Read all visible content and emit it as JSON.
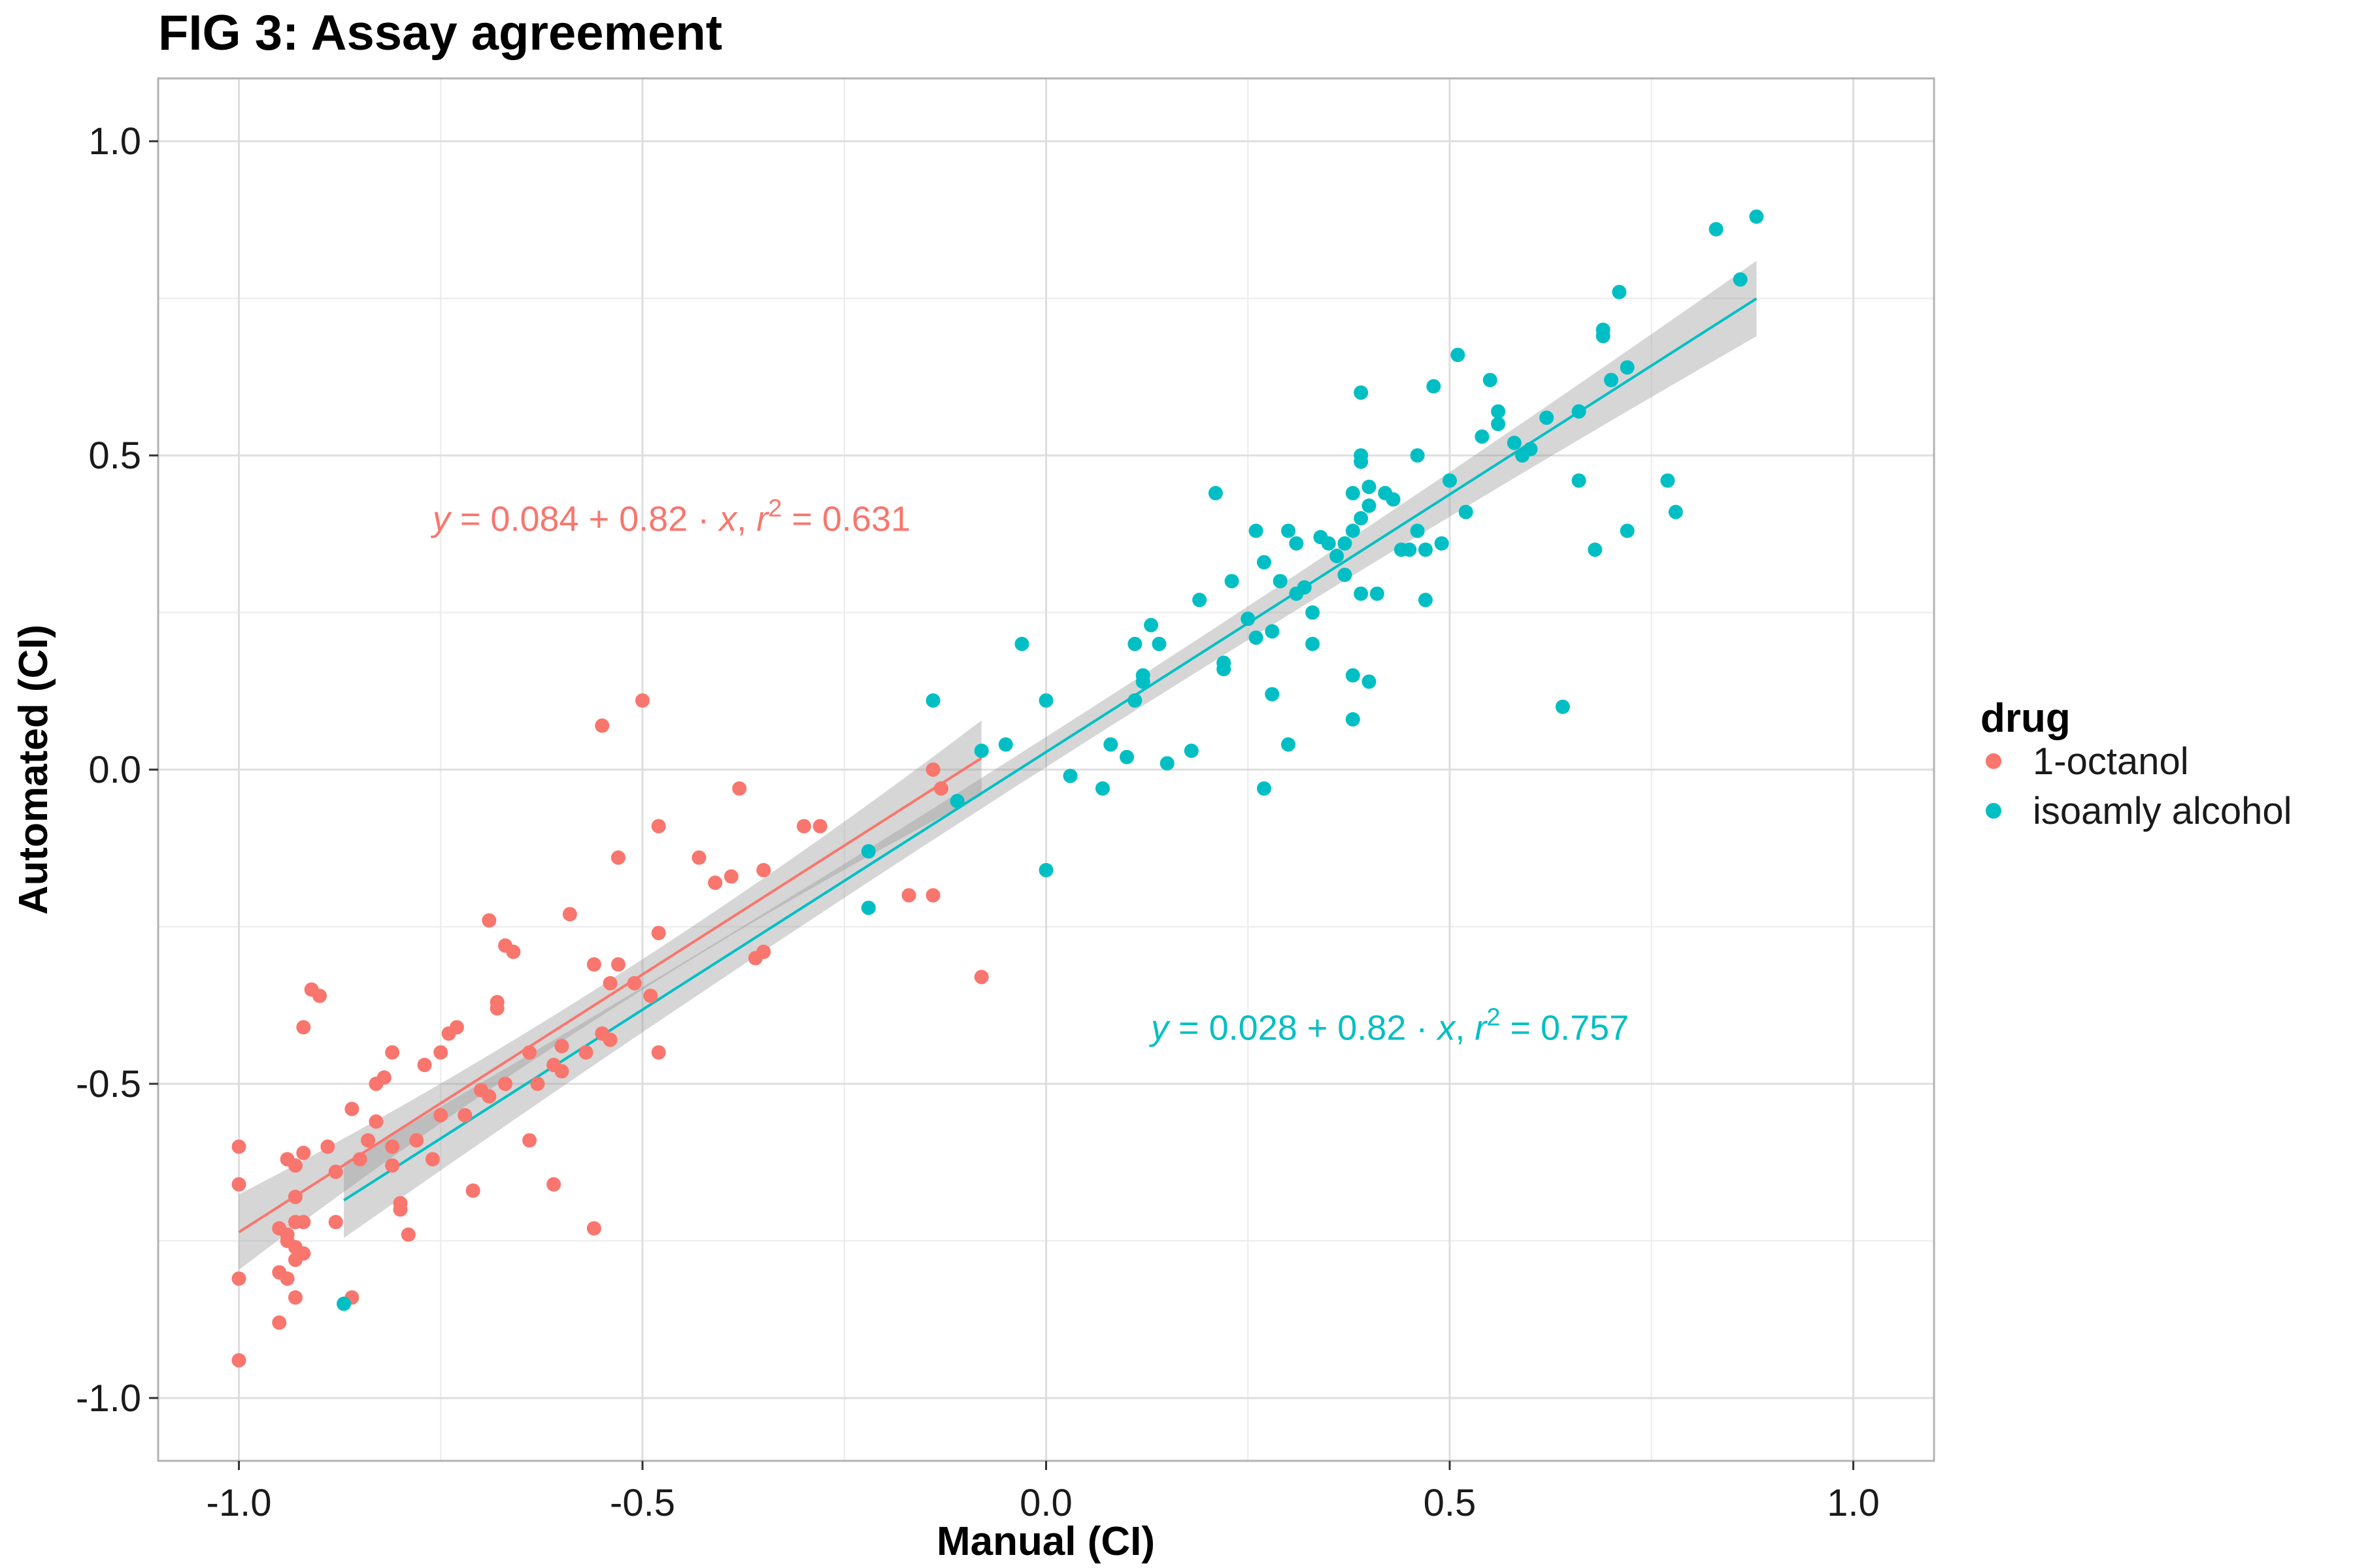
{
  "chart_data": {
    "type": "scatter",
    "title": "FIG 3: Assay agreement",
    "xlabel": "Manual (CI)",
    "ylabel": "Automated (CI)",
    "xlim": [
      -1.1,
      1.1
    ],
    "ylim": [
      -1.1,
      1.1
    ],
    "x_ticks": [
      -1.0,
      -0.5,
      0.0,
      0.5,
      1.0
    ],
    "y_ticks": [
      -1.0,
      -0.5,
      0.0,
      0.5,
      1.0
    ],
    "x_tick_labels": [
      "-1.0",
      "-0.5",
      "0.0",
      "0.5",
      "1.0"
    ],
    "y_tick_labels": [
      "-1.0",
      "-0.5",
      "0.0",
      "0.5",
      "1.0"
    ],
    "grid": true,
    "legend": {
      "title": "drug",
      "position": "right"
    },
    "series": [
      {
        "name": "1-octanol",
        "color": "#F8766D",
        "fit": {
          "intercept": 0.084,
          "slope": 0.82,
          "r2": 0.631,
          "x_range": [
            -1.0,
            -0.08
          ],
          "ci_half_width_ends": 0.06
        },
        "equation": {
          "intercept_text": "0.084",
          "slope_text": "0.82",
          "r2_text": "0.631",
          "anchor_x": -0.76,
          "anchor_y": 0.38
        },
        "points": [
          [
            -1.0,
            -0.6
          ],
          [
            -1.0,
            -0.66
          ],
          [
            -1.0,
            -0.81
          ],
          [
            -1.0,
            -0.94
          ],
          [
            -0.95,
            -0.73
          ],
          [
            -0.95,
            -0.8
          ],
          [
            -0.95,
            -0.88
          ],
          [
            -0.94,
            -0.62
          ],
          [
            -0.94,
            -0.74
          ],
          [
            -0.94,
            -0.75
          ],
          [
            -0.94,
            -0.81
          ],
          [
            -0.93,
            -0.63
          ],
          [
            -0.93,
            -0.68
          ],
          [
            -0.93,
            -0.72
          ],
          [
            -0.93,
            -0.76
          ],
          [
            -0.93,
            -0.78
          ],
          [
            -0.93,
            -0.84
          ],
          [
            -0.92,
            -0.61
          ],
          [
            -0.92,
            -0.41
          ],
          [
            -0.92,
            -0.72
          ],
          [
            -0.92,
            -0.77
          ],
          [
            -0.91,
            -0.35
          ],
          [
            -0.9,
            -0.36
          ],
          [
            -0.89,
            -0.6
          ],
          [
            -0.88,
            -0.64
          ],
          [
            -0.88,
            -0.72
          ],
          [
            -0.86,
            -0.54
          ],
          [
            -0.86,
            -0.84
          ],
          [
            -0.85,
            -0.62
          ],
          [
            -0.84,
            -0.59
          ],
          [
            -0.83,
            -0.5
          ],
          [
            -0.83,
            -0.56
          ],
          [
            -0.82,
            -0.49
          ],
          [
            -0.81,
            -0.63
          ],
          [
            -0.81,
            -0.45
          ],
          [
            -0.81,
            -0.6
          ],
          [
            -0.8,
            -0.7
          ],
          [
            -0.8,
            -0.69
          ],
          [
            -0.79,
            -0.74
          ],
          [
            -0.78,
            -0.59
          ],
          [
            -0.77,
            -0.47
          ],
          [
            -0.76,
            -0.62
          ],
          [
            -0.75,
            -0.45
          ],
          [
            -0.75,
            -0.55
          ],
          [
            -0.74,
            -0.42
          ],
          [
            -0.73,
            -0.41
          ],
          [
            -0.72,
            -0.55
          ],
          [
            -0.71,
            -0.67
          ],
          [
            -0.7,
            -0.51
          ],
          [
            -0.69,
            -0.24
          ],
          [
            -0.69,
            -0.52
          ],
          [
            -0.68,
            -0.37
          ],
          [
            -0.68,
            -0.38
          ],
          [
            -0.67,
            -0.5
          ],
          [
            -0.67,
            -0.28
          ],
          [
            -0.66,
            -0.29
          ],
          [
            -0.64,
            -0.45
          ],
          [
            -0.64,
            -0.59
          ],
          [
            -0.63,
            -0.5
          ],
          [
            -0.61,
            -0.47
          ],
          [
            -0.61,
            -0.66
          ],
          [
            -0.6,
            -0.44
          ],
          [
            -0.6,
            -0.48
          ],
          [
            -0.59,
            -0.23
          ],
          [
            -0.57,
            -0.45
          ],
          [
            -0.56,
            -0.31
          ],
          [
            -0.56,
            -0.73
          ],
          [
            -0.55,
            -0.42
          ],
          [
            -0.55,
            0.07
          ],
          [
            -0.54,
            -0.34
          ],
          [
            -0.54,
            -0.43
          ],
          [
            -0.53,
            -0.14
          ],
          [
            -0.53,
            -0.31
          ],
          [
            -0.51,
            -0.34
          ],
          [
            -0.5,
            0.11
          ],
          [
            -0.49,
            -0.36
          ],
          [
            -0.48,
            -0.09
          ],
          [
            -0.48,
            -0.26
          ],
          [
            -0.48,
            -0.45
          ],
          [
            -0.43,
            -0.14
          ],
          [
            -0.41,
            -0.18
          ],
          [
            -0.39,
            -0.17
          ],
          [
            -0.38,
            -0.03
          ],
          [
            -0.36,
            -0.3
          ],
          [
            -0.35,
            -0.16
          ],
          [
            -0.35,
            -0.29
          ],
          [
            -0.3,
            -0.09
          ],
          [
            -0.28,
            -0.09
          ],
          [
            -0.17,
            -0.2
          ],
          [
            -0.14,
            0.0
          ],
          [
            -0.14,
            -0.2
          ],
          [
            -0.13,
            -0.03
          ],
          [
            -0.08,
            -0.33
          ]
        ]
      },
      {
        "name": "isoamly alcohol",
        "color": "#00BFC4",
        "fit": {
          "intercept": 0.028,
          "slope": 0.82,
          "r2": 0.757,
          "x_range": [
            -0.87,
            0.88
          ],
          "ci_half_width_ends": 0.06
        },
        "equation": {
          "intercept_text": "0.028",
          "slope_text": "0.82",
          "r2_text": "0.757",
          "anchor_x": 0.13,
          "anchor_y": -0.43
        },
        "points": [
          [
            -0.87,
            -0.85
          ],
          [
            -0.22,
            -0.13
          ],
          [
            -0.22,
            -0.22
          ],
          [
            -0.14,
            0.11
          ],
          [
            -0.11,
            -0.05
          ],
          [
            -0.08,
            0.03
          ],
          [
            -0.05,
            0.04
          ],
          [
            -0.03,
            0.2
          ],
          [
            0.0,
            -0.16
          ],
          [
            0.0,
            0.11
          ],
          [
            0.03,
            -0.01
          ],
          [
            0.07,
            -0.03
          ],
          [
            0.08,
            0.04
          ],
          [
            0.1,
            0.02
          ],
          [
            0.11,
            0.11
          ],
          [
            0.11,
            0.2
          ],
          [
            0.12,
            0.14
          ],
          [
            0.12,
            0.15
          ],
          [
            0.13,
            0.23
          ],
          [
            0.14,
            0.2
          ],
          [
            0.15,
            0.01
          ],
          [
            0.18,
            0.03
          ],
          [
            0.19,
            0.27
          ],
          [
            0.21,
            0.44
          ],
          [
            0.22,
            0.16
          ],
          [
            0.22,
            0.17
          ],
          [
            0.23,
            0.3
          ],
          [
            0.25,
            0.24
          ],
          [
            0.26,
            0.38
          ],
          [
            0.26,
            0.21
          ],
          [
            0.27,
            -0.03
          ],
          [
            0.27,
            0.33
          ],
          [
            0.28,
            0.12
          ],
          [
            0.28,
            0.22
          ],
          [
            0.29,
            0.3
          ],
          [
            0.3,
            0.38
          ],
          [
            0.3,
            0.04
          ],
          [
            0.31,
            0.36
          ],
          [
            0.31,
            0.28
          ],
          [
            0.32,
            0.29
          ],
          [
            0.33,
            0.2
          ],
          [
            0.33,
            0.25
          ],
          [
            0.34,
            0.37
          ],
          [
            0.35,
            0.36
          ],
          [
            0.36,
            0.34
          ],
          [
            0.37,
            0.36
          ],
          [
            0.37,
            0.31
          ],
          [
            0.38,
            0.38
          ],
          [
            0.38,
            0.44
          ],
          [
            0.38,
            0.15
          ],
          [
            0.38,
            0.08
          ],
          [
            0.39,
            0.5
          ],
          [
            0.39,
            0.6
          ],
          [
            0.39,
            0.49
          ],
          [
            0.39,
            0.4
          ],
          [
            0.39,
            0.28
          ],
          [
            0.4,
            0.42
          ],
          [
            0.4,
            0.14
          ],
          [
            0.4,
            0.45
          ],
          [
            0.41,
            0.28
          ],
          [
            0.42,
            0.44
          ],
          [
            0.43,
            0.43
          ],
          [
            0.44,
            0.35
          ],
          [
            0.45,
            0.35
          ],
          [
            0.46,
            0.5
          ],
          [
            0.46,
            0.38
          ],
          [
            0.47,
            0.35
          ],
          [
            0.47,
            0.27
          ],
          [
            0.48,
            0.61
          ],
          [
            0.49,
            0.36
          ],
          [
            0.5,
            0.46
          ],
          [
            0.51,
            0.66
          ],
          [
            0.52,
            0.41
          ],
          [
            0.54,
            0.53
          ],
          [
            0.55,
            0.62
          ],
          [
            0.56,
            0.55
          ],
          [
            0.56,
            0.57
          ],
          [
            0.58,
            0.52
          ],
          [
            0.59,
            0.5
          ],
          [
            0.6,
            0.51
          ],
          [
            0.62,
            0.56
          ],
          [
            0.64,
            0.1
          ],
          [
            0.66,
            0.57
          ],
          [
            0.66,
            0.46
          ],
          [
            0.68,
            0.35
          ],
          [
            0.69,
            0.7
          ],
          [
            0.69,
            0.69
          ],
          [
            0.7,
            0.62
          ],
          [
            0.71,
            0.76
          ],
          [
            0.72,
            0.64
          ],
          [
            0.72,
            0.38
          ],
          [
            0.77,
            0.46
          ],
          [
            0.78,
            0.41
          ],
          [
            0.83,
            0.86
          ],
          [
            0.86,
            0.78
          ],
          [
            0.88,
            0.88
          ]
        ]
      }
    ]
  }
}
